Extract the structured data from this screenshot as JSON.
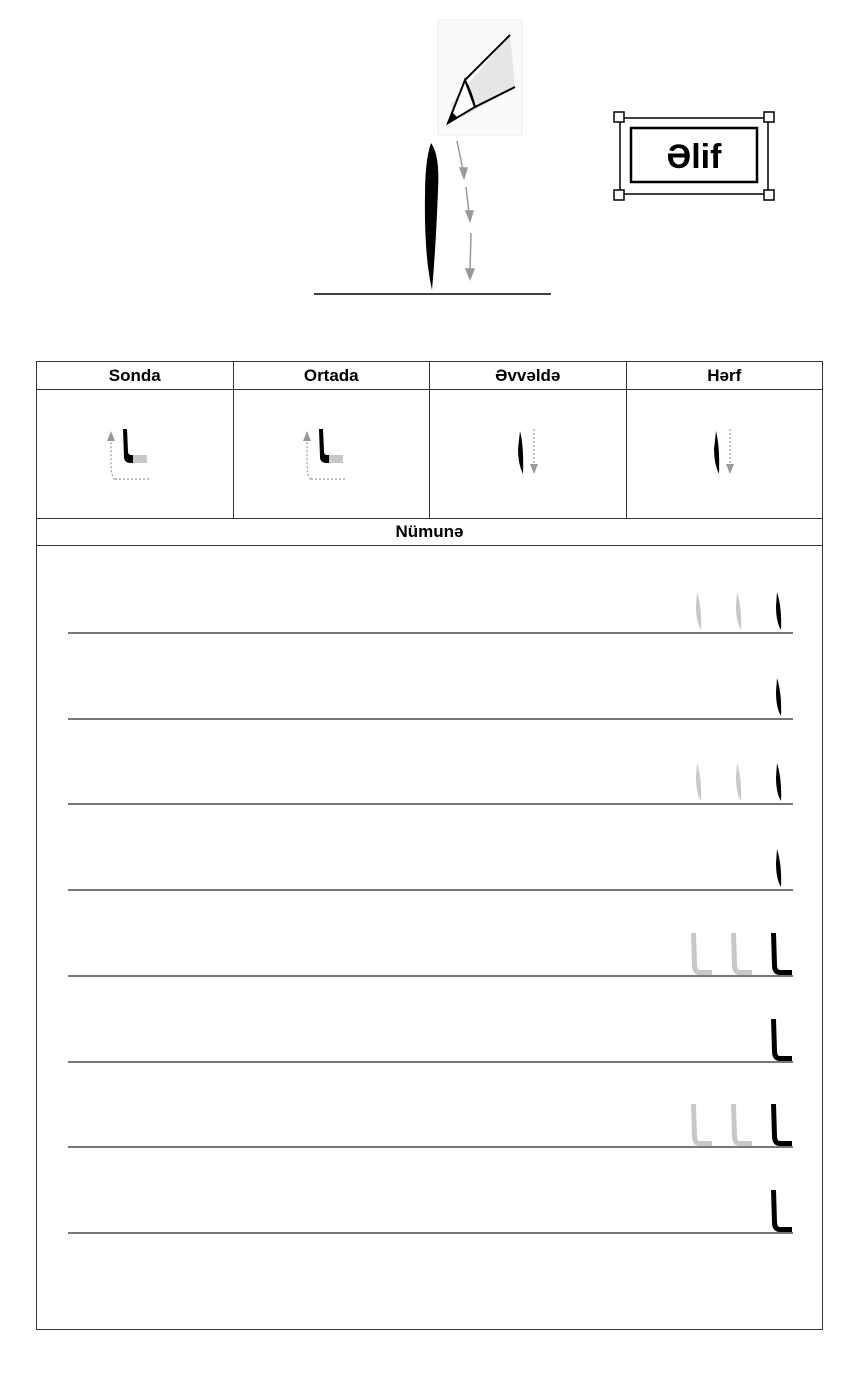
{
  "letter_name": "Əlif",
  "table": {
    "headers": [
      "Sonda",
      "Ortada",
      "Əvvəldə",
      "Hərf"
    ],
    "glyph_forms": [
      "final",
      "medial",
      "initial",
      "isolated"
    ],
    "sample_title": "Nümunə"
  },
  "practice_rows": [
    {
      "form": "isolated",
      "guide_count": 2
    },
    {
      "form": "isolated",
      "guide_count": 0
    },
    {
      "form": "isolated",
      "guide_count": 2
    },
    {
      "form": "isolated",
      "guide_count": 0
    },
    {
      "form": "final",
      "guide_count": 2
    },
    {
      "form": "final",
      "guide_count": 0
    },
    {
      "form": "final",
      "guide_count": 2
    },
    {
      "form": "final",
      "guide_count": 0
    }
  ],
  "colors": {
    "ink": "#000000",
    "guide": "#c8c8c8",
    "line": "#777777",
    "arrow": "#999999"
  }
}
